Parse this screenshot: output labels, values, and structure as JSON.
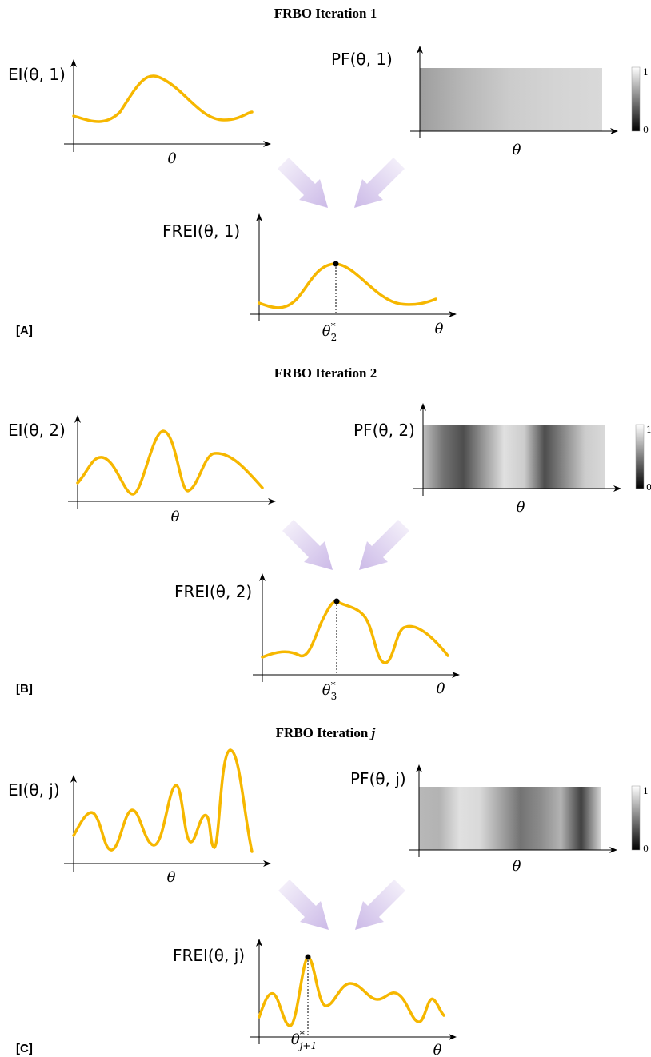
{
  "colors": {
    "curve": "#F6B700",
    "axis": "#000000",
    "arrow": "#C9B6E6"
  },
  "panels": [
    {
      "id": "A",
      "title": "FRBO Iteration 1",
      "label": "[A]",
      "ei_label": "EI(θ, 1)",
      "pf_label": "PF(θ, 1)",
      "frei_label": "FREI(θ, 1)",
      "theta_label": "θ",
      "opt_label_base": "θ",
      "opt_label_sup": "*",
      "opt_label_sub": "2",
      "colorbar_max": "1",
      "colorbar_min": "0",
      "pf_gradient": [
        0.62,
        0.72,
        0.8,
        0.83,
        0.85
      ]
    },
    {
      "id": "B",
      "title": "FRBO Iteration 2",
      "label": "[B]",
      "ei_label": "EI(θ, 2)",
      "pf_label": "PF(θ, 2)",
      "frei_label": "FREI(θ, 2)",
      "theta_label": "θ",
      "opt_label_base": "θ",
      "opt_label_sup": "*",
      "opt_label_sub": "3",
      "colorbar_max": "1",
      "colorbar_min": "0",
      "pf_gradient": [
        0.75,
        0.45,
        0.3,
        0.6,
        0.88,
        0.8,
        0.3,
        0.55,
        0.8,
        0.85
      ]
    },
    {
      "id": "C",
      "title_base": "FRBO Iteration ",
      "title_var": "j",
      "label": "[C]",
      "ei_label": "EI(θ, j)",
      "pf_label": "PF(θ, j)",
      "frei_label": "FREI(θ, j)",
      "theta_label": "θ",
      "opt_label_base": "θ",
      "opt_label_sup": "*",
      "opt_label_sub": "j+1",
      "colorbar_max": "1",
      "colorbar_min": "0",
      "pf_gradient": [
        0.72,
        0.7,
        0.88,
        0.85,
        0.65,
        0.45,
        0.55,
        0.7,
        0.25,
        0.85
      ]
    }
  ]
}
